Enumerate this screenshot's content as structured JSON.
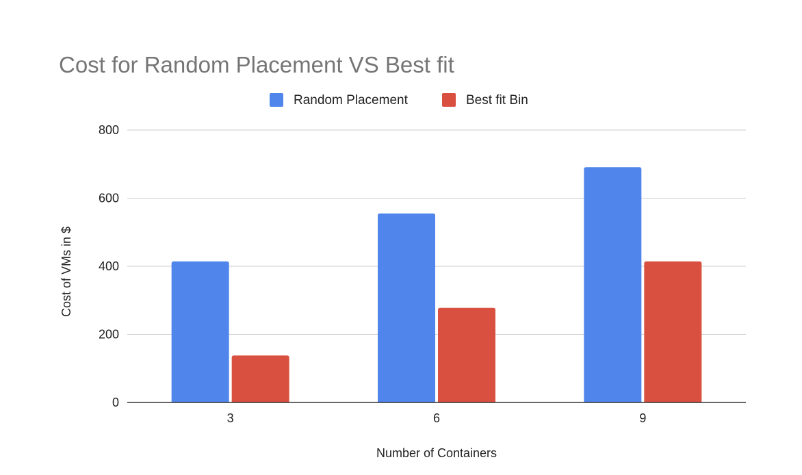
{
  "chart_data": {
    "type": "bar",
    "title": "Cost for Random Placement VS Best fit",
    "xlabel": "Number of Containers",
    "ylabel": "Cost of VMs in $",
    "categories": [
      "3",
      "6",
      "9"
    ],
    "series": [
      {
        "name": "Random Placement",
        "color": "#5086ec",
        "values": [
          414,
          555,
          691
        ]
      },
      {
        "name": "Best fit Bin",
        "color": "#d95040",
        "values": [
          138,
          278,
          414
        ]
      }
    ],
    "ylim": [
      0,
      800
    ],
    "yticks": [
      "0",
      "200",
      "400",
      "600",
      "800"
    ],
    "grid": true,
    "legend_position": "top"
  }
}
